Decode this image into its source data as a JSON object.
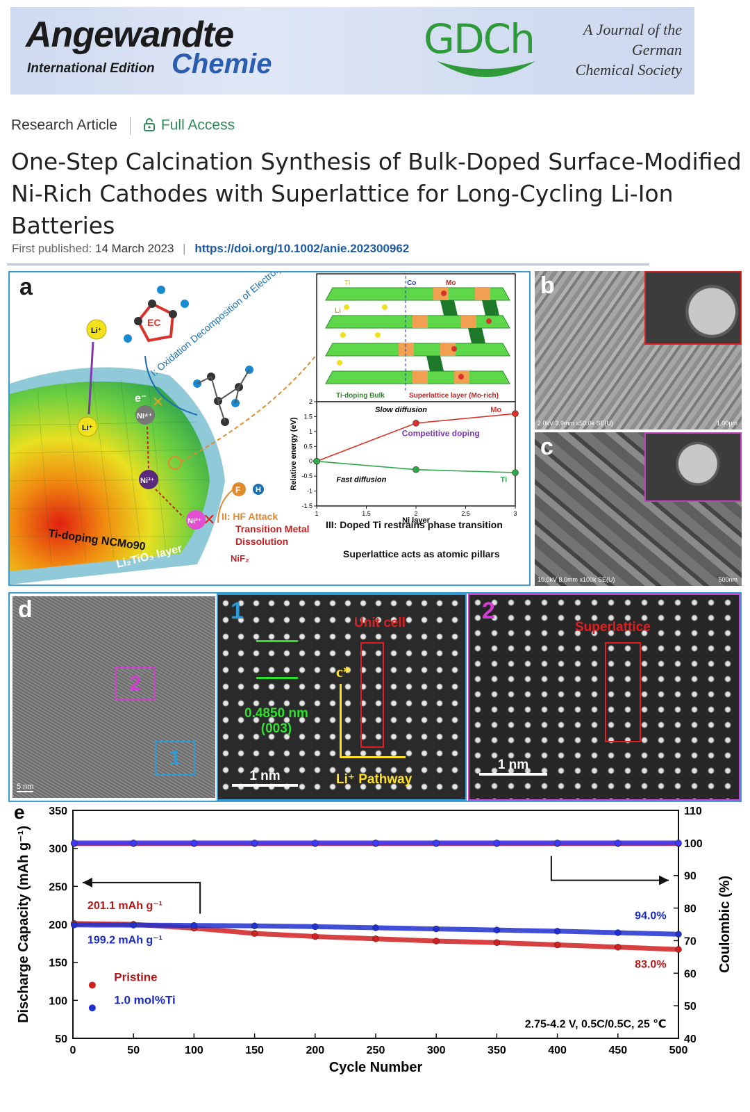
{
  "banner": {
    "journal_line1": "Angewandte",
    "journal_edition": "International Edition",
    "journal_line2": "Chemie",
    "society_logo": "GDCh",
    "society_note_l1": "A Journal of the",
    "society_note_l2": "German",
    "society_note_l3": "Chemical Society"
  },
  "article": {
    "type": "Research Article",
    "access": "Full Access",
    "title": "One-Step Calcination Synthesis of Bulk-Doped Surface-Modified Ni-Rich Cathodes with Superlattice for Long-Cycling Li-Ion Batteries",
    "published_label": "First published:",
    "published_date": "14 March 2023",
    "doi": "https://doi.org/10.1002/anie.202300962"
  },
  "panel_a": {
    "label": "a",
    "oxidation_label": "I: Oxidation Decomposition of Electrolyte",
    "ec": "EC",
    "hf_attack": "II: HF Attack",
    "dissolution_l1": "Transition Metal",
    "dissolution_l2": "Dissolution",
    "core_label": "Ti-doping NCMo90",
    "shell_label": "Li₂TiO₃ layer",
    "li_ion": "Li⁺",
    "ni4": "Ni⁴⁺",
    "ni3": "Ni³⁺",
    "ni2": "Ni²⁺",
    "electron": "e⁻",
    "f_atom": "F",
    "h_atom": "H",
    "ni_product": "NiF₂",
    "bulk_label": "Ti-doping Bulk",
    "super_label": "Superlattice layer (Mo-rich)",
    "ti": "Ti",
    "co": "Co",
    "mo": "Mo",
    "li": "Li",
    "inset_chart": {
      "type": "line",
      "xlabel": "Ni layer",
      "ylabel": "Relative energy (eV)",
      "xlim": [
        1,
        3
      ],
      "ylim": [
        -1.5,
        2
      ],
      "xticks": [
        "1",
        "1.5",
        "2",
        "2.5",
        "3"
      ],
      "yticks": [
        "-1.5",
        "-1",
        "-0.5",
        "0",
        "0.5",
        "1",
        "1.5",
        "2"
      ],
      "series": [
        {
          "name": "Mo",
          "color": "#d9322a",
          "x": [
            1,
            2,
            3
          ],
          "y": [
            0,
            1.28,
            1.6
          ]
        },
        {
          "name": "Ti",
          "color": "#2ea84a",
          "x": [
            1,
            2,
            3
          ],
          "y": [
            0,
            -0.28,
            -0.38
          ]
        }
      ],
      "annotations": {
        "slow": "Slow diffusion",
        "fast": "Fast diffusion",
        "competitive": "Competitive doping",
        "mo": "Mo",
        "ti": "Ti"
      }
    },
    "caption_l1": "III: Doped Ti restrains phase transition",
    "caption_l2": "Superlattice acts as atomic pillars"
  },
  "panel_b": {
    "label": "b",
    "sem_info": "2.0kV 3.9mm x50.0k SE(U)",
    "scale": "1.00µm"
  },
  "panel_c": {
    "label": "c",
    "sem_info": "10.0kV 8.0mm x100k SE(U)",
    "scale": "500nm"
  },
  "panel_d": {
    "label": "d",
    "scale_main": "5 nm",
    "box1": "1",
    "box2": "2",
    "sub1_label": "1",
    "unit_cell": "Unit cell",
    "spacing_l1": "0.4850 nm",
    "spacing_l2": "(003)",
    "c_axis": "c*",
    "pathway": "Li⁺ Pathway",
    "scale1": "1 nm",
    "sub2_label": "2",
    "superlattice": "Superlattice",
    "scale2": "1 nm"
  },
  "chart_data": {
    "type": "scatter",
    "label": "e",
    "xlabel": "Cycle Number",
    "ylabel_left": "Discharge Capacity (mAh g⁻¹)",
    "ylabel_right": "Coulombic (%)",
    "xlim": [
      0,
      500
    ],
    "ylim_left": [
      50,
      350
    ],
    "ylim_right": [
      40,
      110
    ],
    "xticks": [
      "0",
      "50",
      "100",
      "150",
      "200",
      "250",
      "300",
      "350",
      "400",
      "450",
      "500"
    ],
    "yticks_left": [
      "50",
      "100",
      "150",
      "200",
      "250",
      "300",
      "350"
    ],
    "yticks_right": [
      "40",
      "50",
      "60",
      "70",
      "80",
      "90",
      "100",
      "110"
    ],
    "series": [
      {
        "name": "Pristine",
        "color": "#d02020",
        "axis": "left",
        "x": [
          1,
          50,
          100,
          150,
          200,
          250,
          300,
          350,
          400,
          450,
          500
        ],
        "y": [
          201.1,
          200,
          195,
          188,
          184,
          181,
          178,
          176,
          173,
          170,
          167
        ]
      },
      {
        "name": "1.0 mol%Ti",
        "color": "#2030d0",
        "axis": "left",
        "x": [
          1,
          50,
          100,
          150,
          200,
          250,
          300,
          350,
          400,
          450,
          500
        ],
        "y": [
          199.2,
          199,
          198.5,
          198,
          197,
          195.5,
          194,
          192.5,
          191,
          189,
          187
        ]
      },
      {
        "name": "Coulombic Pristine",
        "color": "#d02020",
        "axis": "right",
        "x": [
          1,
          50,
          100,
          150,
          200,
          250,
          300,
          350,
          400,
          450,
          500
        ],
        "y": [
          99.8,
          99.8,
          99.8,
          99.8,
          99.8,
          99.8,
          99.8,
          99.8,
          99.8,
          99.8,
          99.8
        ]
      },
      {
        "name": "Coulombic Ti",
        "color": "#3a3aff",
        "axis": "right",
        "x": [
          1,
          50,
          100,
          150,
          200,
          250,
          300,
          350,
          400,
          450,
          500
        ],
        "y": [
          100,
          100,
          100,
          100,
          100,
          100,
          100,
          100,
          100,
          100,
          100
        ]
      }
    ],
    "annotations": {
      "pristine_initial": "201.1 mAh g⁻¹",
      "ti_initial": "199.2 mAh g⁻¹",
      "ti_retention": "94.0%",
      "pristine_retention": "83.0%",
      "conditions": "2.75-4.2 V, 0.5C/0.5C, 25 ℃"
    },
    "legend": [
      "Pristine",
      "1.0 mol%Ti"
    ]
  }
}
